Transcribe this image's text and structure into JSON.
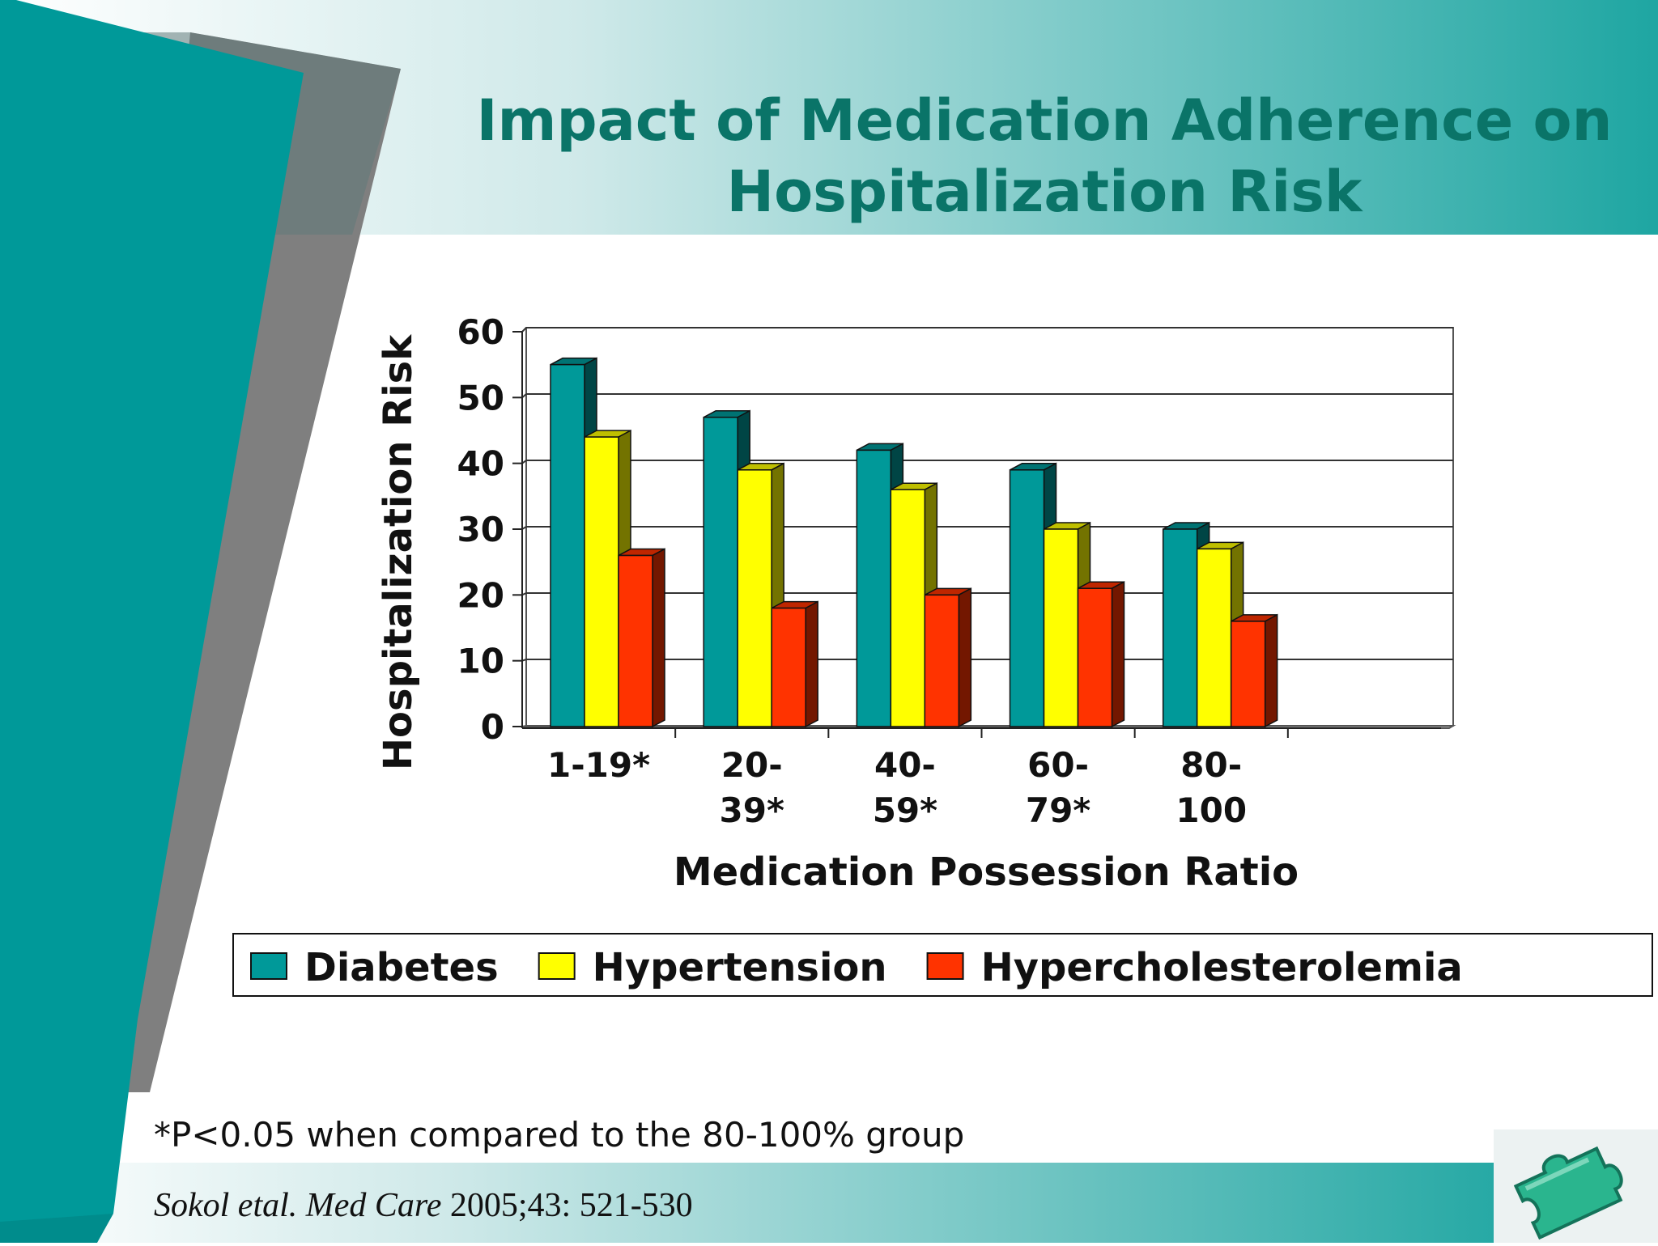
{
  "slide": {
    "title_line1": "Impact of Medication Adherence on",
    "title_line2": "Hospitalization Risk",
    "footnote": "*P<0.05 when compared to the 80-100% group",
    "citation_italic": "Sokol etal. Med Care",
    "citation_rest": " 2005;43: 521-530",
    "colors": {
      "teal_dark": "#009a9a",
      "title": "#0a7468",
      "accent_gray": "#7a7a7a"
    },
    "icons": [
      "puzzle-piece-icon"
    ]
  },
  "chart_data": {
    "type": "bar",
    "title": "",
    "xlabel": "Medication Possession Ratio",
    "ylabel": "Hospitalization Risk",
    "categories": [
      [
        "1-19*"
      ],
      [
        "20-",
        "39*"
      ],
      [
        "40-",
        "59*"
      ],
      [
        "60-",
        "79*"
      ],
      [
        "80-",
        "100"
      ]
    ],
    "series": [
      {
        "name": "Diabetes",
        "values": [
          55,
          47,
          42,
          39,
          30
        ],
        "color": "#009999"
      },
      {
        "name": "Hypertension",
        "values": [
          44,
          39,
          36,
          30,
          27
        ],
        "color": "#ffff00"
      },
      {
        "name": "Hypercholesterolemia",
        "values": [
          26,
          18,
          20,
          21,
          16
        ],
        "color": "#ff3300"
      }
    ],
    "ylim": [
      0,
      60
    ],
    "yticks": [
      0,
      10,
      20,
      30,
      40,
      50,
      60
    ],
    "grid": true,
    "legend_position": "bottom",
    "style": "3d-clustered"
  }
}
